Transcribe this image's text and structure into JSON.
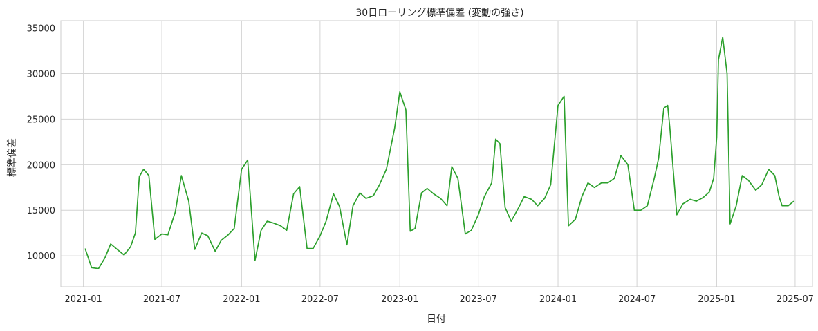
{
  "chart_data": {
    "type": "line",
    "title": "30日ローリング標準偏差 (変動の強さ)",
    "xlabel": "日付",
    "ylabel": "標準偏差",
    "x_ticks": [
      "2021-01",
      "2021-07",
      "2022-01",
      "2022-07",
      "2023-01",
      "2023-07",
      "2024-01",
      "2024-07",
      "2025-01",
      "2025-07"
    ],
    "y_ticks": [
      10000,
      15000,
      20000,
      25000,
      30000,
      35000
    ],
    "y_tick_labels": [
      "10000",
      "15000",
      "20000",
      "25000",
      "30000",
      "35000"
    ],
    "xlim": [
      "2020-11-10",
      "2025-08-10"
    ],
    "ylim": [
      6600,
      35800
    ],
    "grid": true,
    "line_color": "#2ca02c",
    "series": [
      {
        "x": [
          "2021-01-05",
          "2021-01-20",
          "2021-02-05",
          "2021-02-20",
          "2021-03-05",
          "2021-03-20",
          "2021-04-05",
          "2021-04-20",
          "2021-05-01",
          "2021-05-10",
          "2021-05-20",
          "2021-06-01",
          "2021-06-15",
          "2021-07-01",
          "2021-07-15",
          "2021-08-01",
          "2021-08-15",
          "2021-09-01",
          "2021-09-15",
          "2021-10-01",
          "2021-10-15",
          "2021-11-01",
          "2021-11-15",
          "2021-12-01",
          "2021-12-15",
          "2022-01-01",
          "2022-01-15",
          "2022-02-01",
          "2022-02-15",
          "2022-03-01",
          "2022-03-15",
          "2022-04-01",
          "2022-04-15",
          "2022-05-01",
          "2022-05-15",
          "2022-06-01",
          "2022-06-15",
          "2022-07-01",
          "2022-07-15",
          "2022-08-01",
          "2022-08-15",
          "2022-09-01",
          "2022-09-15",
          "2022-10-01",
          "2022-10-15",
          "2022-11-01",
          "2022-11-15",
          "2022-12-01",
          "2022-12-20",
          "2023-01-01",
          "2023-01-15",
          "2023-01-25",
          "2023-02-05",
          "2023-02-20",
          "2023-03-05",
          "2023-03-20",
          "2023-04-05",
          "2023-04-20",
          "2023-05-01",
          "2023-05-15",
          "2023-06-01",
          "2023-06-15",
          "2023-07-01",
          "2023-07-15",
          "2023-08-01",
          "2023-08-10",
          "2023-08-20",
          "2023-09-01",
          "2023-09-15",
          "2023-10-01",
          "2023-10-15",
          "2023-11-01",
          "2023-11-15",
          "2023-12-01",
          "2023-12-15",
          "2024-01-01",
          "2024-01-15",
          "2024-01-25",
          "2024-02-10",
          "2024-02-25",
          "2024-03-10",
          "2024-03-25",
          "2024-04-10",
          "2024-04-25",
          "2024-05-10",
          "2024-05-25",
          "2024-06-10",
          "2024-06-25",
          "2024-07-10",
          "2024-07-25",
          "2024-08-10",
          "2024-08-20",
          "2024-09-01",
          "2024-09-10",
          "2024-09-15",
          "2024-10-01",
          "2024-10-15",
          "2024-11-01",
          "2024-11-15",
          "2024-12-01",
          "2024-12-15",
          "2024-12-25",
          "2025-01-01",
          "2025-01-05",
          "2025-01-15",
          "2025-01-25",
          "2025-02-01",
          "2025-02-15",
          "2025-03-01",
          "2025-03-15",
          "2025-04-01",
          "2025-04-15",
          "2025-05-01",
          "2025-05-15",
          "2025-05-25",
          "2025-06-01",
          "2025-06-15",
          "2025-06-28"
        ],
        "values": [
          10800,
          8700,
          8600,
          9800,
          11300,
          10700,
          10100,
          11000,
          12500,
          18700,
          19500,
          18800,
          11800,
          12400,
          12300,
          14800,
          18800,
          16000,
          10700,
          12500,
          12200,
          10500,
          11700,
          12300,
          13000,
          19500,
          20500,
          9500,
          12800,
          13800,
          13600,
          13300,
          12800,
          16800,
          17600,
          10800,
          10800,
          12200,
          13800,
          16800,
          15400,
          11200,
          15500,
          16900,
          16300,
          16600,
          17800,
          19500,
          24000,
          28000,
          26000,
          12700,
          13000,
          16900,
          17400,
          16800,
          16300,
          15500,
          19800,
          18500,
          12400,
          12800,
          14500,
          16500,
          18000,
          22800,
          22300,
          15300,
          13800,
          15200,
          16500,
          16200,
          15500,
          16300,
          17800,
          26500,
          27500,
          13300,
          14000,
          16500,
          18000,
          17500,
          18000,
          18000,
          18500,
          21000,
          20000,
          15000,
          15000,
          15500,
          18500,
          20700,
          26200,
          26500,
          24000,
          14500,
          15700,
          16200,
          16000,
          16400,
          17000,
          18500,
          23000,
          31500,
          34000,
          30000,
          13500,
          15500,
          18800,
          18300,
          17200,
          17800,
          19500,
          18800,
          16500,
          15500,
          15500,
          16000
        ]
      }
    ]
  }
}
